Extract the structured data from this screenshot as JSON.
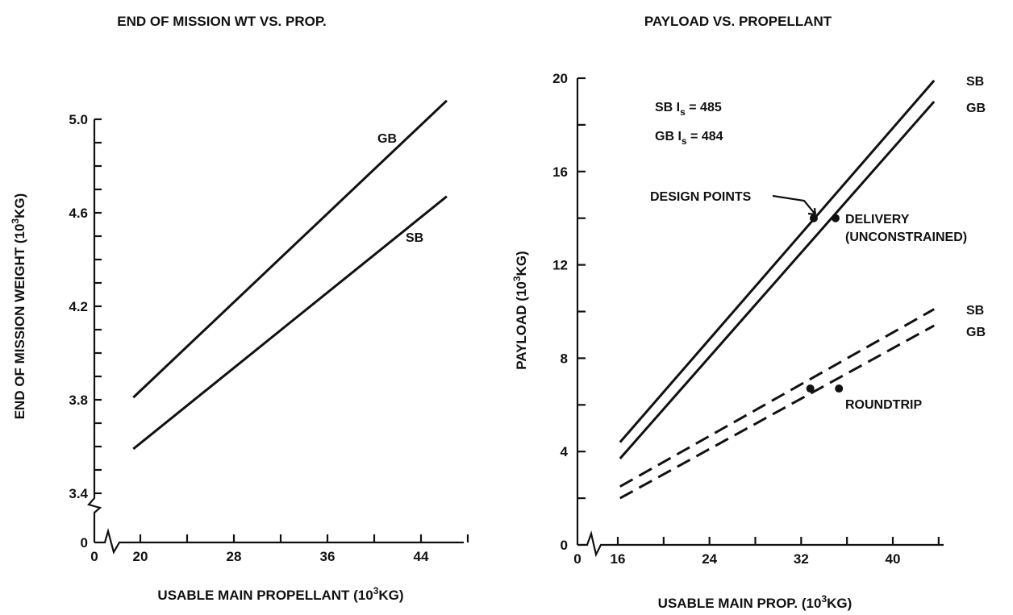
{
  "chart_data": [
    {
      "type": "line",
      "title": "END OF MISSION WT VS. PROP.",
      "xlabel": "USABLE MAIN PROPELLANT (10",
      "xlabel_sup": "3",
      "xlabel_end": "KG)",
      "ylabel": "END OF MISSION WEIGHT (10",
      "ylabel_sup": "3",
      "ylabel_end": "KG)",
      "x_ticks": [
        20,
        28,
        36,
        44
      ],
      "x_tick_labels": [
        "20",
        "28",
        "36",
        "44"
      ],
      "y_ticks": [
        3.4,
        3.8,
        4.2,
        4.6,
        5.0
      ],
      "y_tick_labels": [
        "3.4",
        "3.8",
        "4.2",
        "4.6",
        "5.0"
      ],
      "x_zero_label": "0",
      "y_zero_label": "0",
      "xlim": [
        20,
        48
      ],
      "ylim": [
        3.4,
        5.0
      ],
      "series": [
        {
          "name": "GB",
          "style": "solid",
          "x": [
            19.4,
            46.2
          ],
          "y": [
            3.81,
            5.08
          ]
        },
        {
          "name": "SB",
          "style": "solid",
          "x": [
            19.4,
            46.2
          ],
          "y": [
            3.59,
            4.67
          ]
        }
      ]
    },
    {
      "type": "line",
      "title": "PAYLOAD VS. PROPELLANT",
      "xlabel": "USABLE MAIN PROP. (10",
      "xlabel_sup": "3",
      "xlabel_end": "KG)",
      "ylabel": "PAYLOAD (10",
      "ylabel_sup": "3",
      "ylabel_end": "KG)",
      "x_ticks": [
        16,
        24,
        32,
        40
      ],
      "x_tick_labels": [
        "16",
        "24",
        "32",
        "40"
      ],
      "y_ticks": [
        4,
        8,
        12,
        16,
        20
      ],
      "y_tick_labels": [
        "4",
        "8",
        "12",
        "16",
        "20"
      ],
      "x_zero_label": "0",
      "y_zero_label": "0",
      "xlim": [
        16,
        44
      ],
      "ylim": [
        0,
        20
      ],
      "series": [
        {
          "name": "SB",
          "style": "solid",
          "x": [
            16.2,
            43.6
          ],
          "y": [
            4.4,
            19.9
          ]
        },
        {
          "name": "GB",
          "style": "solid",
          "x": [
            16.2,
            43.6
          ],
          "y": [
            3.7,
            19.0
          ]
        },
        {
          "name": "SB",
          "style": "dashed",
          "x": [
            16.2,
            43.6
          ],
          "y": [
            2.5,
            10.1
          ]
        },
        {
          "name": "GB",
          "style": "dashed",
          "x": [
            16.2,
            43.6
          ],
          "y": [
            2.0,
            9.4
          ]
        }
      ],
      "points": [
        {
          "x": 33.1,
          "y": 14.0
        },
        {
          "x": 35.0,
          "y": 14.0
        },
        {
          "x": 32.8,
          "y": 6.7
        },
        {
          "x": 35.3,
          "y": 6.7
        }
      ],
      "annotations": {
        "sb_isp_pre": "SB I",
        "sb_isp_sub": "s",
        "sb_isp_post": " = 485",
        "gb_isp_pre": "GB I",
        "gb_isp_sub": "s",
        "gb_isp_post": " = 484",
        "design_points": "DESIGN POINTS",
        "delivery": "DELIVERY",
        "unconstrained": "(UNCONSTRAINED)",
        "roundtrip": "ROUNDTRIP"
      }
    }
  ]
}
